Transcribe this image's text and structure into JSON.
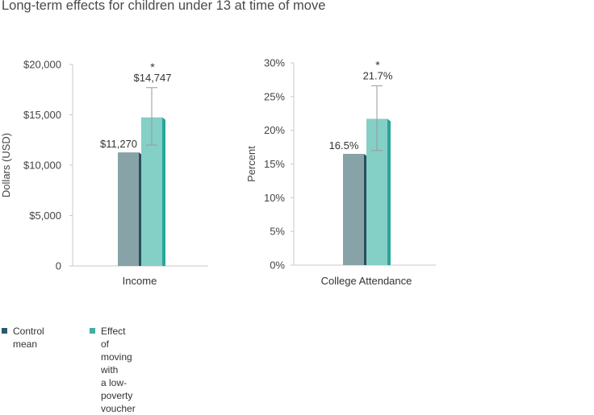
{
  "title": "Long-term effects for children under 13 at time of move",
  "colors": {
    "control_face": "#87a3a8",
    "control_side": "#2b4e5d",
    "control_legend": "#2b5a6b",
    "voucher_face": "#84cfc6",
    "voucher_side": "#2aa598",
    "voucher_legend": "#3fb0a2",
    "axis": "#c8c8c8",
    "text": "#333333"
  },
  "legend": [
    {
      "key": "control",
      "label": "Control mean"
    },
    {
      "key": "voucher",
      "label": "Effect of moving with\na low-poverty voucher"
    }
  ],
  "chart_data": [
    {
      "type": "bar",
      "ylabel": "Dollars (USD)",
      "ylim": [
        0,
        20000
      ],
      "y_ticks": [
        "0",
        "$5,000",
        "$10,000",
        "$15,000",
        "$20,000"
      ],
      "categories": [
        "Income"
      ],
      "series": [
        {
          "name": "Control mean",
          "values": [
            11270
          ],
          "labels": [
            "$11,270"
          ]
        },
        {
          "name": "Effect of moving with a low-poverty voucher",
          "values": [
            14747
          ],
          "labels": [
            "$14,747"
          ],
          "error": [
            [
              12000,
              17700
            ]
          ],
          "significance": "*"
        }
      ]
    },
    {
      "type": "bar",
      "ylabel": "Percent",
      "ylim": [
        0,
        30
      ],
      "y_ticks": [
        "0%",
        "5%",
        "10%",
        "15%",
        "20%",
        "25%",
        "30%"
      ],
      "categories": [
        "College Attendance"
      ],
      "series": [
        {
          "name": "Control mean",
          "values": [
            16.5
          ],
          "labels": [
            "16.5%"
          ]
        },
        {
          "name": "Effect of moving with a low-poverty voucher",
          "values": [
            21.7
          ],
          "labels": [
            "21.7%"
          ],
          "error": [
            [
              17.0,
              26.6
            ]
          ],
          "significance": "*"
        }
      ]
    }
  ]
}
